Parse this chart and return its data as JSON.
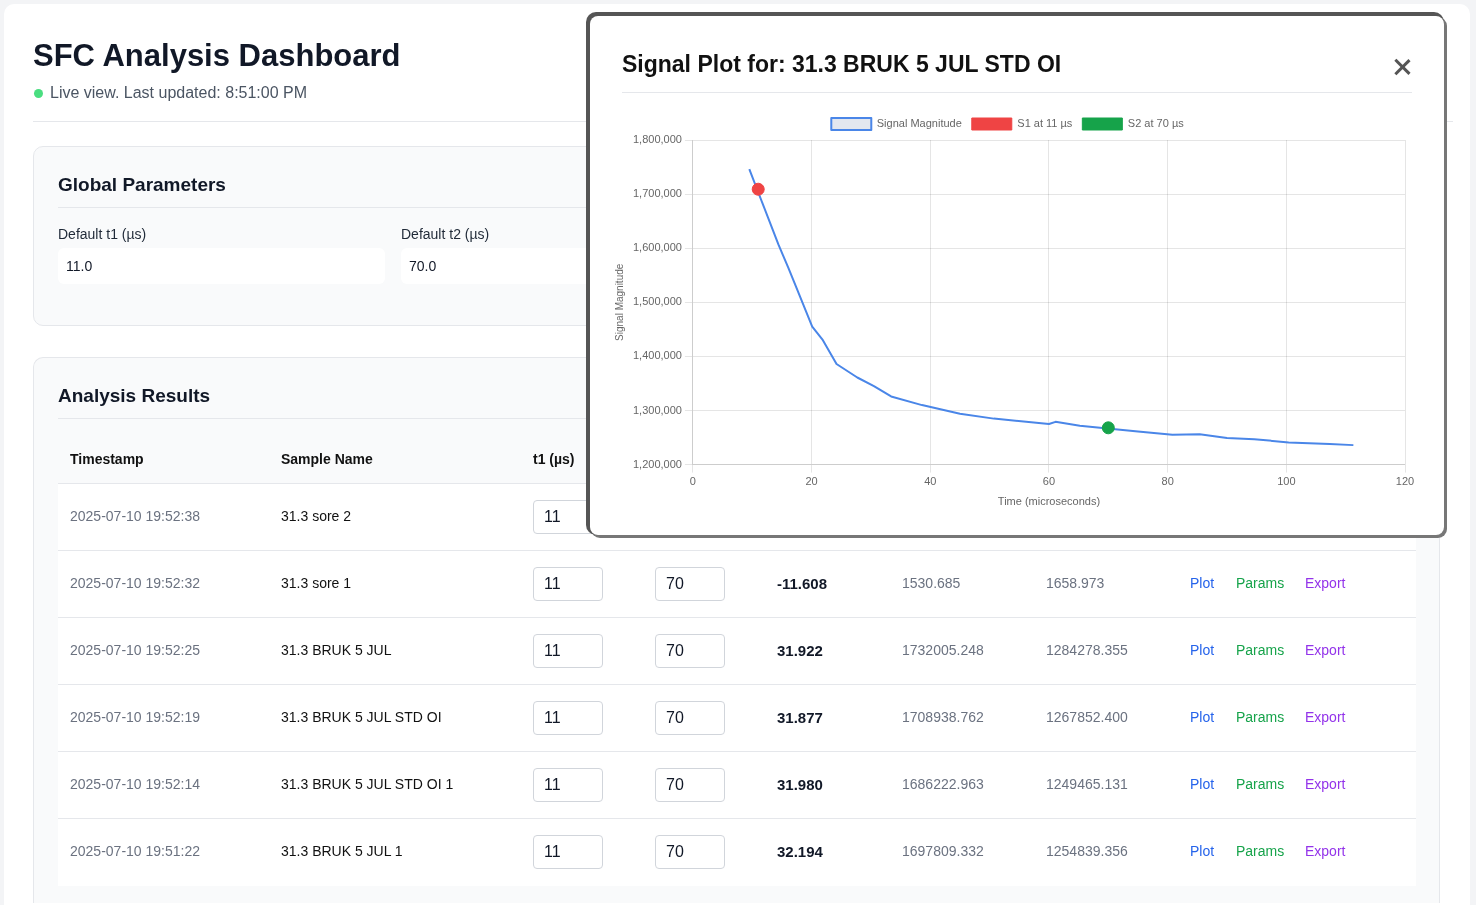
{
  "chart_data": {
    "type": "line",
    "title": "Signal Plot for: 31.3 BRUK 5 JUL STD OI",
    "xlabel": "Time (microseconds)",
    "ylabel": "Signal Magnitude",
    "xlim": [
      0,
      120
    ],
    "xticks": [
      0,
      20,
      40,
      60,
      80,
      100,
      120
    ],
    "ylim": [
      1200000,
      1800000
    ],
    "yticks": [
      {
        "value": 1200000,
        "label": "1,200,000"
      },
      {
        "value": 1300000,
        "label": "1,300,000"
      },
      {
        "value": 1400000,
        "label": "1,400,000"
      },
      {
        "value": 1500000,
        "label": "1,500,000"
      },
      {
        "value": 1600000,
        "label": "1,600,000"
      },
      {
        "value": 1700000,
        "label": "1,700,000"
      },
      {
        "value": 1800000,
        "label": "1,800,000"
      }
    ],
    "grid": true,
    "legend": "top",
    "series": [
      {
        "name": "Signal Magnitude",
        "type": "line",
        "color": "#4a86e8",
        "marker": "none",
        "line_style": "solid",
        "x": [
          9.5,
          14.4,
          16.1,
          17.3,
          20.1,
          21.9,
          24.2,
          27.7,
          30.5,
          33.4,
          38.6,
          45.0,
          50.7,
          60.0,
          61.1,
          65.2,
          75.0,
          80.8,
          85.4,
          90.0,
          94.6,
          100.4,
          107.3,
          111.3
        ],
        "values": [
          1746000,
          1607000,
          1563000,
          1531000,
          1455000,
          1430000,
          1386000,
          1361000,
          1345000,
          1326000,
          1310000,
          1294000,
          1285000,
          1275000,
          1279000,
          1272000,
          1261000,
          1255000,
          1256000,
          1249000,
          1247000,
          1241000,
          1238000,
          1236000
        ]
      },
      {
        "name": "S1 at 11 µs",
        "type": "scatter",
        "color": "#ef4444",
        "marker": "circle",
        "x": [
          11
        ],
        "values": [
          1709000
        ]
      },
      {
        "name": "S2 at 70 µs",
        "type": "scatter",
        "color": "#16a34a",
        "marker": "circle",
        "x": [
          70
        ],
        "values": [
          1268000
        ]
      }
    ],
    "annotations": [
      "SFC Analysis Dashboard",
      "Live view. Last updated: 8:51:00 PM",
      "Global Parameters",
      "Default t1 (µs)",
      "11.0",
      "Default t2 (µs)",
      "70.0",
      "Analysis Results",
      "Timestamp",
      "Sample Name",
      "t1 (µs)",
      "2025-07-10 19:52:38",
      "31.3 sore 2",
      "11",
      "2025-07-10 19:52:32",
      "31.3 sore 1",
      "11",
      "70",
      "-11.608",
      "1530.685",
      "1658.973",
      "Plot",
      "Params",
      "Export",
      "2025-07-10 19:52:25",
      "31.3 BRUK 5 JUL",
      "11",
      "70",
      "31.922",
      "1732005.248",
      "1284278.355",
      "Plot",
      "Params",
      "Export",
      "2025-07-10 19:52:19",
      "31.3 BRUK 5 JUL STD OI",
      "11",
      "70",
      "31.877",
      "1708938.762",
      "1267852.400",
      "Plot",
      "Params",
      "Export",
      "2025-07-10 19:52:14",
      "31.3 BRUK 5 JUL STD OI 1",
      "11",
      "70",
      "31.980",
      "1686222.963",
      "1249465.131",
      "Plot",
      "Params",
      "Export",
      "2025-07-10 19:51:22",
      "31.3 BRUK 5 JUL 1",
      "11",
      "70",
      "32.194",
      "1697809.332",
      "1254839.356",
      "Plot",
      "Params",
      "Export"
    ]
  }
}
